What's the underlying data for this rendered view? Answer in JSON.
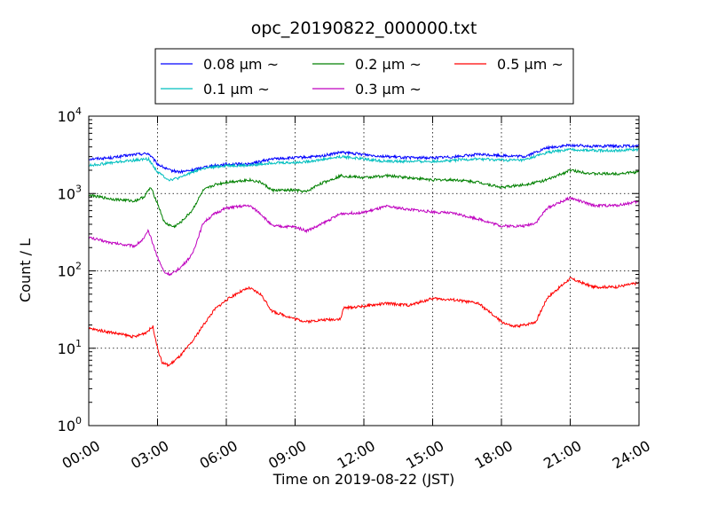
{
  "chart_data": {
    "type": "line",
    "title": "opc_20190822_000000.txt",
    "xlabel": "Time on 2019-08-22 (JST)",
    "ylabel": "Count / L",
    "yscale": "log",
    "xlim": [
      0,
      24
    ],
    "ylim": [
      1,
      10000
    ],
    "x_ticks": [
      "00:00",
      "03:00",
      "06:00",
      "09:00",
      "12:00",
      "15:00",
      "18:00",
      "21:00",
      "24:00"
    ],
    "y_ticks": [
      {
        "base": "10",
        "exp": "0"
      },
      {
        "base": "10",
        "exp": "1"
      },
      {
        "base": "10",
        "exp": "2"
      },
      {
        "base": "10",
        "exp": "3"
      },
      {
        "base": "10",
        "exp": "4"
      }
    ],
    "grid": true,
    "legend_position": "top-center",
    "series": [
      {
        "name": "0.08 μm ~",
        "color": "#0000ff",
        "points": [
          [
            0,
            2800
          ],
          [
            1,
            2900
          ],
          [
            2,
            3200
          ],
          [
            2.6,
            3300
          ],
          [
            3,
            2400
          ],
          [
            3.5,
            2000
          ],
          [
            4,
            1900
          ],
          [
            4.5,
            2000
          ],
          [
            5,
            2200
          ],
          [
            6,
            2400
          ],
          [
            7,
            2400
          ],
          [
            8,
            2800
          ],
          [
            9,
            2900
          ],
          [
            10,
            3000
          ],
          [
            11,
            3400
          ],
          [
            12,
            3200
          ],
          [
            13,
            3000
          ],
          [
            14,
            2900
          ],
          [
            15,
            2900
          ],
          [
            16,
            3000
          ],
          [
            17,
            3200
          ],
          [
            18,
            3100
          ],
          [
            19,
            3000
          ],
          [
            20,
            3900
          ],
          [
            21,
            4200
          ],
          [
            22,
            4100
          ],
          [
            23,
            4100
          ],
          [
            24,
            4100
          ]
        ]
      },
      {
        "name": "0.1 μm ~",
        "color": "#00bfbf",
        "points": [
          [
            0,
            2300
          ],
          [
            1,
            2500
          ],
          [
            2,
            2700
          ],
          [
            2.6,
            2800
          ],
          [
            3,
            1900
          ],
          [
            3.5,
            1500
          ],
          [
            4,
            1600
          ],
          [
            4.5,
            1900
          ],
          [
            5,
            2100
          ],
          [
            6,
            2300
          ],
          [
            7,
            2300
          ],
          [
            8,
            2500
          ],
          [
            9,
            2500
          ],
          [
            10,
            2700
          ],
          [
            11,
            3000
          ],
          [
            12,
            2800
          ],
          [
            13,
            2600
          ],
          [
            14,
            2600
          ],
          [
            15,
            2600
          ],
          [
            16,
            2700
          ],
          [
            17,
            2800
          ],
          [
            18,
            2700
          ],
          [
            19,
            2700
          ],
          [
            20,
            3400
          ],
          [
            21,
            3700
          ],
          [
            22,
            3600
          ],
          [
            23,
            3600
          ],
          [
            24,
            3700
          ]
        ]
      },
      {
        "name": "0.2 μm ~",
        "color": "#008000",
        "points": [
          [
            0,
            950
          ],
          [
            1,
            850
          ],
          [
            2,
            800
          ],
          [
            2.4,
            900
          ],
          [
            2.7,
            1200
          ],
          [
            3,
            750
          ],
          [
            3.3,
            420
          ],
          [
            3.7,
            370
          ],
          [
            4,
            420
          ],
          [
            4.5,
            600
          ],
          [
            5,
            1100
          ],
          [
            5.5,
            1300
          ],
          [
            6,
            1400
          ],
          [
            7,
            1500
          ],
          [
            7.5,
            1400
          ],
          [
            8,
            1100
          ],
          [
            9,
            1100
          ],
          [
            9.5,
            1050
          ],
          [
            10,
            1300
          ],
          [
            11,
            1700
          ],
          [
            12,
            1600
          ],
          [
            13,
            1700
          ],
          [
            14,
            1600
          ],
          [
            15,
            1500
          ],
          [
            16,
            1500
          ],
          [
            17,
            1400
          ],
          [
            18,
            1200
          ],
          [
            19,
            1300
          ],
          [
            20,
            1500
          ],
          [
            21,
            2000
          ],
          [
            22,
            1800
          ],
          [
            23,
            1800
          ],
          [
            24,
            1900
          ]
        ]
      },
      {
        "name": "0.3 μm ~",
        "color": "#bf00bf",
        "points": [
          [
            0,
            270
          ],
          [
            1,
            230
          ],
          [
            2,
            210
          ],
          [
            2.4,
            260
          ],
          [
            2.6,
            330
          ],
          [
            3,
            150
          ],
          [
            3.3,
            95
          ],
          [
            3.6,
            90
          ],
          [
            4,
            110
          ],
          [
            4.5,
            160
          ],
          [
            5,
            420
          ],
          [
            5.5,
            550
          ],
          [
            6,
            650
          ],
          [
            7,
            700
          ],
          [
            7.5,
            550
          ],
          [
            8,
            380
          ],
          [
            9,
            370
          ],
          [
            9.5,
            330
          ],
          [
            10,
            380
          ],
          [
            11,
            550
          ],
          [
            12,
            570
          ],
          [
            13,
            680
          ],
          [
            14,
            620
          ],
          [
            15,
            580
          ],
          [
            16,
            550
          ],
          [
            17,
            470
          ],
          [
            18,
            380
          ],
          [
            19,
            380
          ],
          [
            19.5,
            420
          ],
          [
            20,
            650
          ],
          [
            21,
            880
          ],
          [
            22,
            700
          ],
          [
            23,
            700
          ],
          [
            24,
            790
          ]
        ]
      },
      {
        "name": "0.5 μm ~",
        "color": "#ff0000",
        "points": [
          [
            0,
            18
          ],
          [
            1,
            16
          ],
          [
            2,
            14
          ],
          [
            2.5,
            16
          ],
          [
            2.8,
            19
          ],
          [
            3,
            10
          ],
          [
            3.2,
            6.5
          ],
          [
            3.5,
            6
          ],
          [
            4,
            8
          ],
          [
            4.5,
            12
          ],
          [
            5,
            20
          ],
          [
            5.5,
            32
          ],
          [
            6,
            42
          ],
          [
            6.5,
            52
          ],
          [
            7,
            60
          ],
          [
            7.5,
            50
          ],
          [
            8,
            30
          ],
          [
            9,
            24
          ],
          [
            9.5,
            22
          ],
          [
            10,
            23
          ],
          [
            11,
            24
          ],
          [
            11.1,
            33
          ],
          [
            12,
            35
          ],
          [
            13,
            38
          ],
          [
            14,
            36
          ],
          [
            15,
            44
          ],
          [
            16,
            42
          ],
          [
            17,
            38
          ],
          [
            18,
            22
          ],
          [
            18.5,
            19
          ],
          [
            19,
            20
          ],
          [
            19.5,
            22
          ],
          [
            20,
            45
          ],
          [
            21,
            80
          ],
          [
            22,
            62
          ],
          [
            23,
            62
          ],
          [
            24,
            70
          ]
        ]
      }
    ]
  }
}
